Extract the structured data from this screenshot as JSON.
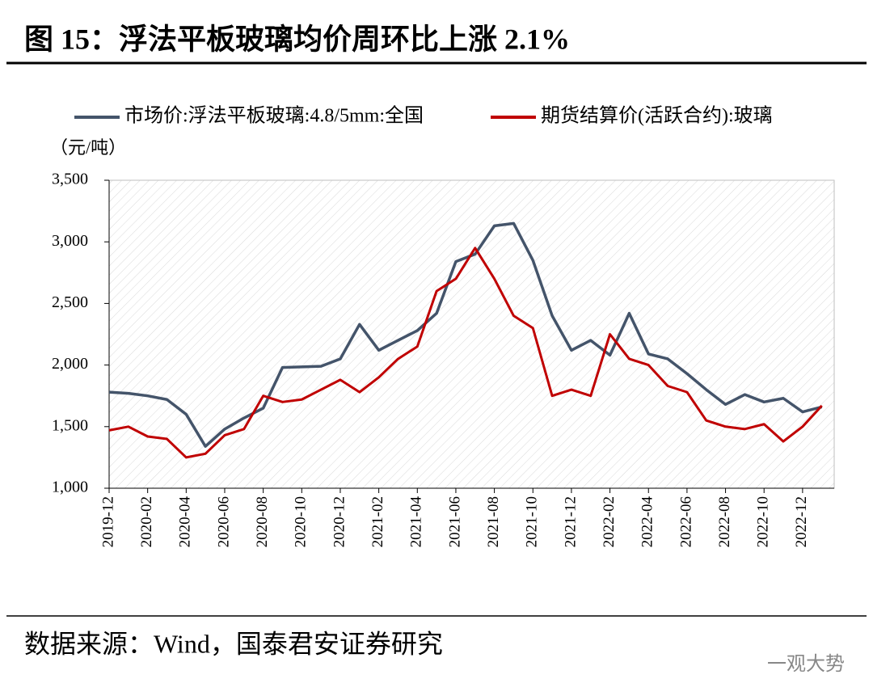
{
  "chart_data": {
    "type": "line",
    "title": "图 15：浮法平板玻璃均价周环比上涨 2.1%",
    "y_label": "（元/吨）",
    "source": "数据来源：Wind，国泰君安证券研究",
    "watermark": "一观大势",
    "categories": [
      "2019-12",
      null,
      "2020-02",
      null,
      "2020-04",
      null,
      "2020-06",
      null,
      "2020-08",
      null,
      "2020-10",
      null,
      "2020-12",
      null,
      "2021-02",
      null,
      "2021-04",
      null,
      "2021-06",
      null,
      "2021-08",
      null,
      "2021-10",
      null,
      "2021-12",
      null,
      "2022-02",
      null,
      "2022-04",
      null,
      "2022-06",
      null,
      "2022-08",
      null,
      "2022-10",
      null,
      "2022-12",
      null
    ],
    "series": [
      {
        "name": "市场价:浮法平板玻璃:4.8/5mm:全国",
        "color": "#44546a",
        "values": [
          1780,
          1770,
          1750,
          1720,
          1600,
          1340,
          1480,
          1570,
          1650,
          1980,
          1985,
          1990,
          2050,
          2330,
          2120,
          2200,
          2280,
          2420,
          2840,
          2900,
          3130,
          3150,
          2850,
          2400,
          2120,
          2200,
          2080,
          2420,
          2090,
          2050,
          1930,
          1800,
          1680,
          1760,
          1700,
          1730,
          1620,
          1660
        ]
      },
      {
        "name": "期货结算价(活跃合约):玻璃",
        "color": "#c00000",
        "values": [
          1470,
          1500,
          1420,
          1400,
          1250,
          1280,
          1430,
          1480,
          1750,
          1700,
          1720,
          1800,
          1880,
          1780,
          1900,
          2050,
          2150,
          2600,
          2700,
          2950,
          2700,
          2400,
          2300,
          1750,
          1800,
          1750,
          2250,
          2050,
          2000,
          1830,
          1780,
          1550,
          1500,
          1480,
          1520,
          1380,
          1500,
          1670
        ]
      }
    ],
    "ylim": [
      1000,
      3500
    ],
    "yticks": [
      {
        "value": 1000,
        "label": "1,000"
      },
      {
        "value": 1500,
        "label": "1,500"
      },
      {
        "value": 2000,
        "label": "2,000"
      },
      {
        "value": 2500,
        "label": "2,500"
      },
      {
        "value": 3000,
        "label": "3,000"
      },
      {
        "value": 3500,
        "label": "3,500"
      }
    ]
  }
}
